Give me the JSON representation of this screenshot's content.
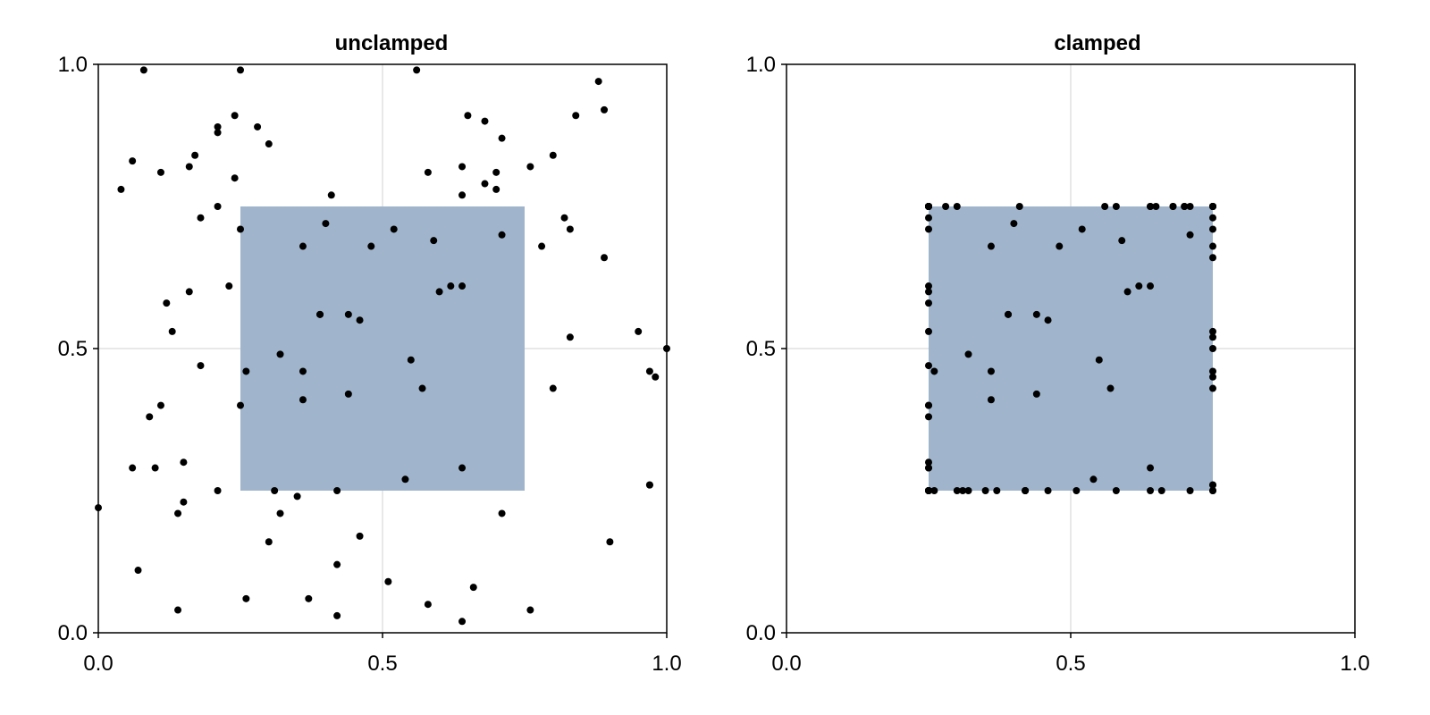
{
  "chart_data": [
    {
      "type": "scatter",
      "title": "unclamped",
      "xlabel": "",
      "ylabel": "",
      "xlim": [
        0.0,
        1.0
      ],
      "ylim": [
        0.0,
        1.0
      ],
      "xticks": [
        "0.0",
        "0.5",
        "1.0"
      ],
      "yticks": [
        "0.0",
        "0.5",
        "1.0"
      ],
      "grid": true,
      "rectangle": {
        "x": [
          0.25,
          0.75
        ],
        "y": [
          0.25,
          0.75
        ],
        "color": "#a0b5cc"
      },
      "point_color": "#000000",
      "points": [
        [
          0.08,
          0.99
        ],
        [
          0.25,
          0.99
        ],
        [
          0.56,
          0.99
        ],
        [
          0.88,
          0.97
        ],
        [
          0.89,
          0.92
        ],
        [
          0.84,
          0.91
        ],
        [
          0.65,
          0.91
        ],
        [
          0.68,
          0.9
        ],
        [
          0.24,
          0.91
        ],
        [
          0.28,
          0.89
        ],
        [
          0.21,
          0.89
        ],
        [
          0.21,
          0.88
        ],
        [
          0.71,
          0.87
        ],
        [
          0.3,
          0.86
        ],
        [
          0.8,
          0.84
        ],
        [
          0.17,
          0.84
        ],
        [
          0.06,
          0.83
        ],
        [
          0.16,
          0.82
        ],
        [
          0.64,
          0.82
        ],
        [
          0.76,
          0.82
        ],
        [
          0.58,
          0.81
        ],
        [
          0.7,
          0.81
        ],
        [
          0.11,
          0.81
        ],
        [
          0.24,
          0.8
        ],
        [
          0.68,
          0.79
        ],
        [
          0.04,
          0.78
        ],
        [
          0.7,
          0.78
        ],
        [
          0.41,
          0.77
        ],
        [
          0.64,
          0.77
        ],
        [
          0.21,
          0.75
        ],
        [
          0.18,
          0.73
        ],
        [
          0.82,
          0.73
        ],
        [
          0.4,
          0.72
        ],
        [
          0.25,
          0.71
        ],
        [
          0.52,
          0.71
        ],
        [
          0.83,
          0.71
        ],
        [
          0.71,
          0.7
        ],
        [
          0.59,
          0.69
        ],
        [
          0.36,
          0.68
        ],
        [
          0.48,
          0.68
        ],
        [
          0.78,
          0.68
        ],
        [
          0.89,
          0.66
        ],
        [
          0.23,
          0.61
        ],
        [
          0.16,
          0.6
        ],
        [
          0.6,
          0.6
        ],
        [
          0.62,
          0.61
        ],
        [
          0.64,
          0.61
        ],
        [
          0.12,
          0.58
        ],
        [
          0.39,
          0.56
        ],
        [
          0.39,
          0.56
        ],
        [
          0.44,
          0.56
        ],
        [
          0.46,
          0.55
        ],
        [
          0.13,
          0.53
        ],
        [
          0.95,
          0.53
        ],
        [
          0.83,
          0.52
        ],
        [
          1.0,
          0.5
        ],
        [
          0.32,
          0.49
        ],
        [
          0.55,
          0.48
        ],
        [
          0.18,
          0.47
        ],
        [
          0.26,
          0.46
        ],
        [
          0.36,
          0.46
        ],
        [
          0.97,
          0.46
        ],
        [
          0.98,
          0.45
        ],
        [
          0.57,
          0.43
        ],
        [
          0.8,
          0.43
        ],
        [
          0.44,
          0.42
        ],
        [
          0.36,
          0.41
        ],
        [
          0.25,
          0.4
        ],
        [
          0.11,
          0.4
        ],
        [
          0.09,
          0.38
        ],
        [
          0.15,
          0.3
        ],
        [
          0.06,
          0.29
        ],
        [
          0.1,
          0.29
        ],
        [
          0.64,
          0.29
        ],
        [
          0.54,
          0.27
        ],
        [
          0.97,
          0.26
        ],
        [
          0.97,
          0.26
        ],
        [
          0.42,
          0.25
        ],
        [
          0.21,
          0.25
        ],
        [
          0.31,
          0.25
        ],
        [
          0.35,
          0.24
        ],
        [
          0.15,
          0.23
        ],
        [
          0.0,
          0.22
        ],
        [
          0.14,
          0.21
        ],
        [
          0.32,
          0.21
        ],
        [
          0.71,
          0.21
        ],
        [
          0.46,
          0.17
        ],
        [
          0.3,
          0.16
        ],
        [
          0.9,
          0.16
        ],
        [
          0.42,
          0.12
        ],
        [
          0.07,
          0.11
        ],
        [
          0.51,
          0.09
        ],
        [
          0.66,
          0.08
        ],
        [
          0.26,
          0.06
        ],
        [
          0.37,
          0.06
        ],
        [
          0.14,
          0.04
        ],
        [
          0.58,
          0.05
        ],
        [
          0.76,
          0.04
        ],
        [
          0.42,
          0.03
        ],
        [
          0.64,
          0.02
        ]
      ]
    },
    {
      "type": "scatter",
      "title": "clamped",
      "xlabel": "",
      "ylabel": "",
      "xlim": [
        0.0,
        1.0
      ],
      "ylim": [
        0.0,
        1.0
      ],
      "xticks": [
        "0.0",
        "0.5",
        "1.0"
      ],
      "yticks": [
        "0.0",
        "0.5",
        "1.0"
      ],
      "grid": true,
      "rectangle": {
        "x": [
          0.25,
          0.75
        ],
        "y": [
          0.25,
          0.75
        ],
        "color": "#a0b5cc"
      },
      "point_color": "#000000",
      "points": [
        [
          0.25,
          0.75
        ],
        [
          0.25,
          0.75
        ],
        [
          0.56,
          0.75
        ],
        [
          0.75,
          0.75
        ],
        [
          0.75,
          0.75
        ],
        [
          0.75,
          0.75
        ],
        [
          0.65,
          0.75
        ],
        [
          0.68,
          0.75
        ],
        [
          0.25,
          0.75
        ],
        [
          0.28,
          0.75
        ],
        [
          0.25,
          0.75
        ],
        [
          0.25,
          0.75
        ],
        [
          0.71,
          0.75
        ],
        [
          0.3,
          0.75
        ],
        [
          0.75,
          0.75
        ],
        [
          0.25,
          0.75
        ],
        [
          0.25,
          0.75
        ],
        [
          0.25,
          0.75
        ],
        [
          0.64,
          0.75
        ],
        [
          0.75,
          0.75
        ],
        [
          0.58,
          0.75
        ],
        [
          0.7,
          0.75
        ],
        [
          0.25,
          0.75
        ],
        [
          0.25,
          0.75
        ],
        [
          0.68,
          0.75
        ],
        [
          0.25,
          0.75
        ],
        [
          0.7,
          0.75
        ],
        [
          0.41,
          0.75
        ],
        [
          0.64,
          0.75
        ],
        [
          0.25,
          0.75
        ],
        [
          0.25,
          0.73
        ],
        [
          0.75,
          0.73
        ],
        [
          0.4,
          0.72
        ],
        [
          0.25,
          0.71
        ],
        [
          0.52,
          0.71
        ],
        [
          0.75,
          0.71
        ],
        [
          0.71,
          0.7
        ],
        [
          0.59,
          0.69
        ],
        [
          0.36,
          0.68
        ],
        [
          0.48,
          0.68
        ],
        [
          0.75,
          0.68
        ],
        [
          0.75,
          0.66
        ],
        [
          0.25,
          0.61
        ],
        [
          0.25,
          0.6
        ],
        [
          0.6,
          0.6
        ],
        [
          0.62,
          0.61
        ],
        [
          0.64,
          0.61
        ],
        [
          0.25,
          0.58
        ],
        [
          0.39,
          0.56
        ],
        [
          0.39,
          0.56
        ],
        [
          0.44,
          0.56
        ],
        [
          0.46,
          0.55
        ],
        [
          0.25,
          0.53
        ],
        [
          0.75,
          0.53
        ],
        [
          0.75,
          0.52
        ],
        [
          0.75,
          0.5
        ],
        [
          0.32,
          0.49
        ],
        [
          0.55,
          0.48
        ],
        [
          0.25,
          0.47
        ],
        [
          0.26,
          0.46
        ],
        [
          0.36,
          0.46
        ],
        [
          0.75,
          0.46
        ],
        [
          0.75,
          0.45
        ],
        [
          0.57,
          0.43
        ],
        [
          0.75,
          0.43
        ],
        [
          0.44,
          0.42
        ],
        [
          0.36,
          0.41
        ],
        [
          0.25,
          0.4
        ],
        [
          0.25,
          0.4
        ],
        [
          0.25,
          0.38
        ],
        [
          0.25,
          0.3
        ],
        [
          0.25,
          0.29
        ],
        [
          0.25,
          0.29
        ],
        [
          0.64,
          0.29
        ],
        [
          0.54,
          0.27
        ],
        [
          0.75,
          0.26
        ],
        [
          0.75,
          0.26
        ],
        [
          0.42,
          0.25
        ],
        [
          0.25,
          0.25
        ],
        [
          0.31,
          0.25
        ],
        [
          0.35,
          0.25
        ],
        [
          0.25,
          0.25
        ],
        [
          0.25,
          0.25
        ],
        [
          0.25,
          0.25
        ],
        [
          0.32,
          0.25
        ],
        [
          0.71,
          0.25
        ],
        [
          0.46,
          0.25
        ],
        [
          0.3,
          0.25
        ],
        [
          0.75,
          0.25
        ],
        [
          0.42,
          0.25
        ],
        [
          0.25,
          0.25
        ],
        [
          0.51,
          0.25
        ],
        [
          0.66,
          0.25
        ],
        [
          0.26,
          0.25
        ],
        [
          0.37,
          0.25
        ],
        [
          0.25,
          0.25
        ],
        [
          0.58,
          0.25
        ],
        [
          0.75,
          0.25
        ],
        [
          0.42,
          0.25
        ],
        [
          0.64,
          0.25
        ]
      ]
    }
  ]
}
